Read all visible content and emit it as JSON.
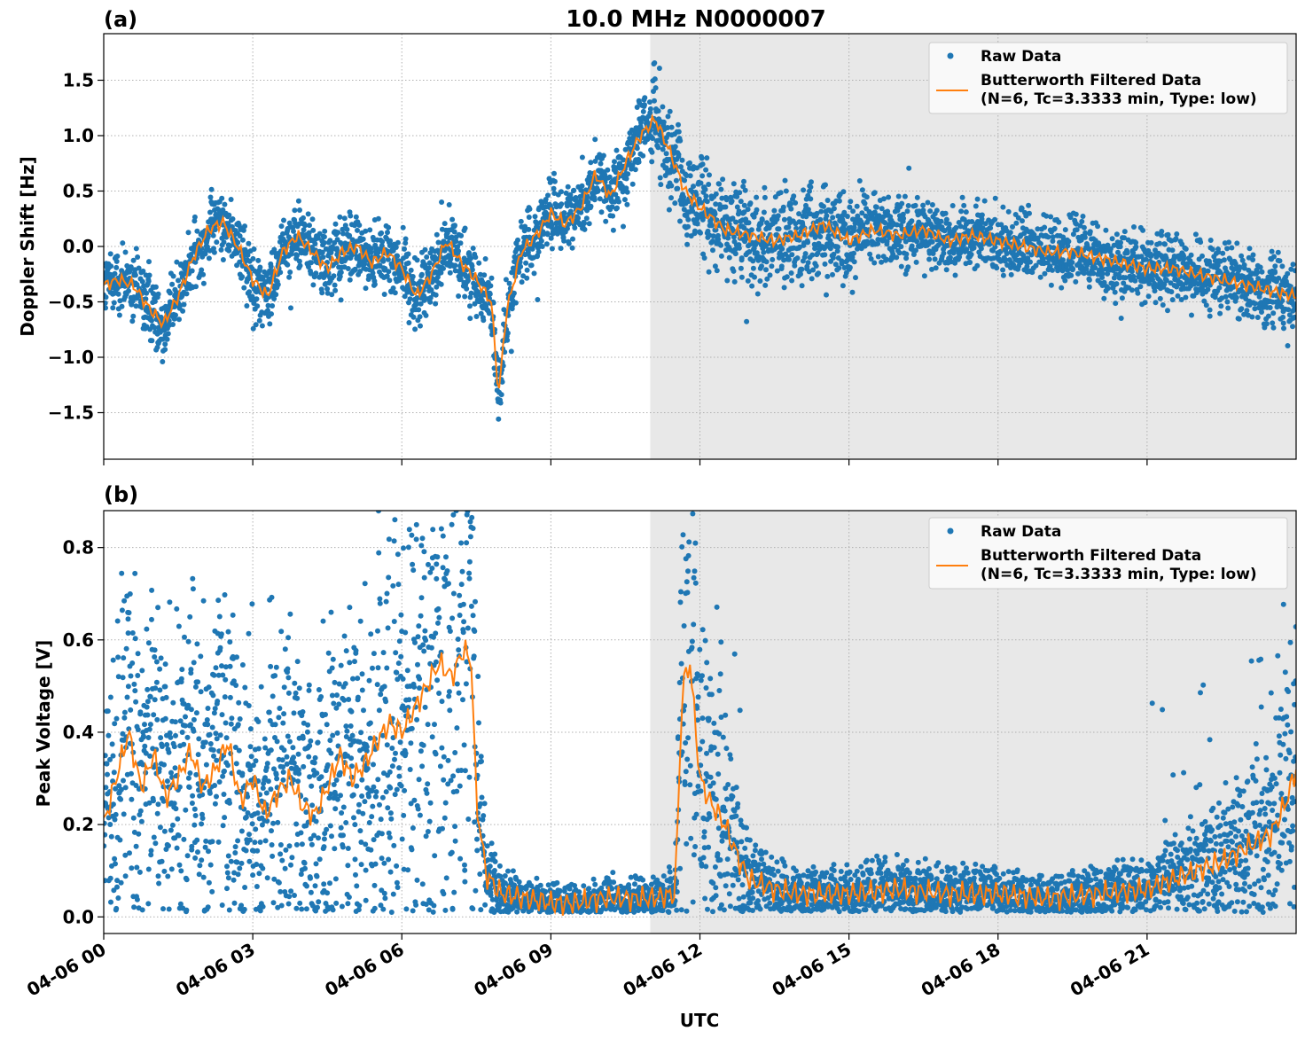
{
  "figure": {
    "title": "10.0 MHz N0000007",
    "xlabel": "UTC",
    "x_tick_labels": [
      "04-06 00",
      "04-06 03",
      "04-06 06",
      "04-06 09",
      "04-06 12",
      "04-06 15",
      "04-06 18",
      "04-06 21"
    ],
    "shaded_region_hours": [
      11.0,
      24.0
    ],
    "colors": {
      "raw": "#1f77b4",
      "filtered": "#ff7f0e",
      "shade": "#e8e8e8",
      "grid": "#b0b0b0"
    }
  },
  "legend": {
    "raw_label": "Raw Data",
    "filtered_label_line1": "Butterworth Filtered Data",
    "filtered_label_line2": "(N=6, Tc=3.3333 min, Type: low)"
  },
  "chart_data": [
    {
      "type": "scatter",
      "panel_label": "(a)",
      "ylabel": "Doppler Shift [Hz]",
      "xlim_hours": [
        0,
        24
      ],
      "ylim": [
        -1.92,
        1.92
      ],
      "y_ticks": [
        -1.5,
        -1.0,
        -0.5,
        0.0,
        0.5,
        1.0,
        1.5
      ],
      "y_tick_labels": [
        "−1.5",
        "−1.0",
        "−0.5",
        "0.0",
        "0.5",
        "1.0",
        "1.5"
      ],
      "legend_position": "top-right",
      "grid": true,
      "series": [
        {
          "name": "Butterworth Filtered Data",
          "x_hours": [
            0,
            0.3,
            0.6,
            0.9,
            1.2,
            1.5,
            1.8,
            2.1,
            2.4,
            2.7,
            3.0,
            3.3,
            3.6,
            3.9,
            4.2,
            4.5,
            4.8,
            5.1,
            5.4,
            5.7,
            6.0,
            6.3,
            6.6,
            6.9,
            7.2,
            7.5,
            7.8,
            7.95,
            8.1,
            8.4,
            8.7,
            9.0,
            9.3,
            9.6,
            9.9,
            10.2,
            10.5,
            10.8,
            11.1,
            11.4,
            11.7,
            12.0,
            12.5,
            13.0,
            13.5,
            14.0,
            14.5,
            15.0,
            15.5,
            16.0,
            16.5,
            17.0,
            17.5,
            18.0,
            18.5,
            19.0,
            19.5,
            20.0,
            20.5,
            21.0,
            21.5,
            22.0,
            22.5,
            23.0,
            23.5,
            24.0
          ],
          "values": [
            -0.35,
            -0.3,
            -0.35,
            -0.55,
            -0.7,
            -0.45,
            -0.1,
            0.15,
            0.22,
            0.0,
            -0.3,
            -0.45,
            -0.05,
            0.1,
            -0.05,
            -0.2,
            -0.05,
            0.0,
            -0.15,
            -0.05,
            -0.2,
            -0.45,
            -0.25,
            0.05,
            -0.15,
            -0.3,
            -0.5,
            -1.35,
            -0.6,
            -0.05,
            0.1,
            0.3,
            0.2,
            0.35,
            0.65,
            0.45,
            0.75,
            1.0,
            1.15,
            0.85,
            0.5,
            0.35,
            0.15,
            0.1,
            0.05,
            0.1,
            0.2,
            0.05,
            0.15,
            0.1,
            0.15,
            0.05,
            0.1,
            0.05,
            0.0,
            -0.05,
            -0.05,
            -0.1,
            -0.15,
            -0.2,
            -0.2,
            -0.25,
            -0.3,
            -0.35,
            -0.4,
            -0.45
          ]
        }
      ]
    },
    {
      "type": "scatter",
      "panel_label": "(b)",
      "ylabel": "Peak Voltage [V]",
      "xlim_hours": [
        0,
        24
      ],
      "ylim": [
        -0.036,
        0.88
      ],
      "y_ticks": [
        0.0,
        0.2,
        0.4,
        0.6,
        0.8
      ],
      "y_tick_labels": [
        "0.0",
        "0.2",
        "0.4",
        "0.6",
        "0.8"
      ],
      "legend_position": "top-right",
      "grid": true,
      "series": [
        {
          "name": "Butterworth Filtered Data",
          "x_hours": [
            0,
            0.25,
            0.5,
            0.75,
            1.0,
            1.25,
            1.5,
            1.75,
            2.0,
            2.25,
            2.5,
            2.75,
            3.0,
            3.25,
            3.5,
            3.75,
            4.0,
            4.25,
            4.5,
            4.75,
            5.0,
            5.25,
            5.5,
            5.75,
            6.0,
            6.25,
            6.5,
            6.75,
            7.0,
            7.25,
            7.4,
            7.5,
            7.7,
            8.0,
            8.5,
            9.0,
            9.5,
            10.0,
            10.5,
            11.0,
            11.5,
            11.65,
            11.8,
            12.0,
            12.2,
            12.5,
            12.8,
            13.0,
            13.5,
            14.0,
            15.0,
            16.0,
            17.0,
            18.0,
            19.0,
            20.0,
            21.0,
            21.5,
            22.0,
            22.5,
            23.0,
            23.5,
            23.8,
            24.0
          ],
          "values": [
            0.2,
            0.3,
            0.4,
            0.28,
            0.35,
            0.26,
            0.3,
            0.36,
            0.28,
            0.32,
            0.38,
            0.25,
            0.3,
            0.22,
            0.27,
            0.3,
            0.24,
            0.22,
            0.28,
            0.35,
            0.3,
            0.33,
            0.38,
            0.42,
            0.4,
            0.45,
            0.5,
            0.55,
            0.52,
            0.58,
            0.55,
            0.25,
            0.09,
            0.05,
            0.04,
            0.03,
            0.03,
            0.04,
            0.04,
            0.04,
            0.05,
            0.5,
            0.55,
            0.3,
            0.25,
            0.2,
            0.12,
            0.08,
            0.06,
            0.05,
            0.05,
            0.06,
            0.05,
            0.05,
            0.04,
            0.05,
            0.06,
            0.08,
            0.1,
            0.12,
            0.15,
            0.18,
            0.25,
            0.32
          ]
        }
      ]
    }
  ]
}
